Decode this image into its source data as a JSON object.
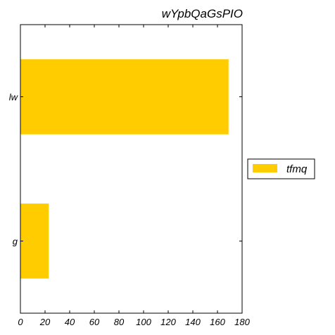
{
  "chart_data": {
    "type": "bar",
    "orientation": "horizontal",
    "title": "wYpbQaGsPIO",
    "xlabel": "",
    "ylabel": "",
    "categories": [
      "lw",
      "g"
    ],
    "series": [
      {
        "name": "tfmq",
        "values": [
          169,
          23
        ],
        "color": "#FFCC00"
      }
    ],
    "xlim": [
      0,
      180
    ],
    "xticks": [
      0,
      20,
      40,
      60,
      80,
      100,
      120,
      140,
      160,
      180
    ],
    "grid": false,
    "legend_position": "right"
  }
}
